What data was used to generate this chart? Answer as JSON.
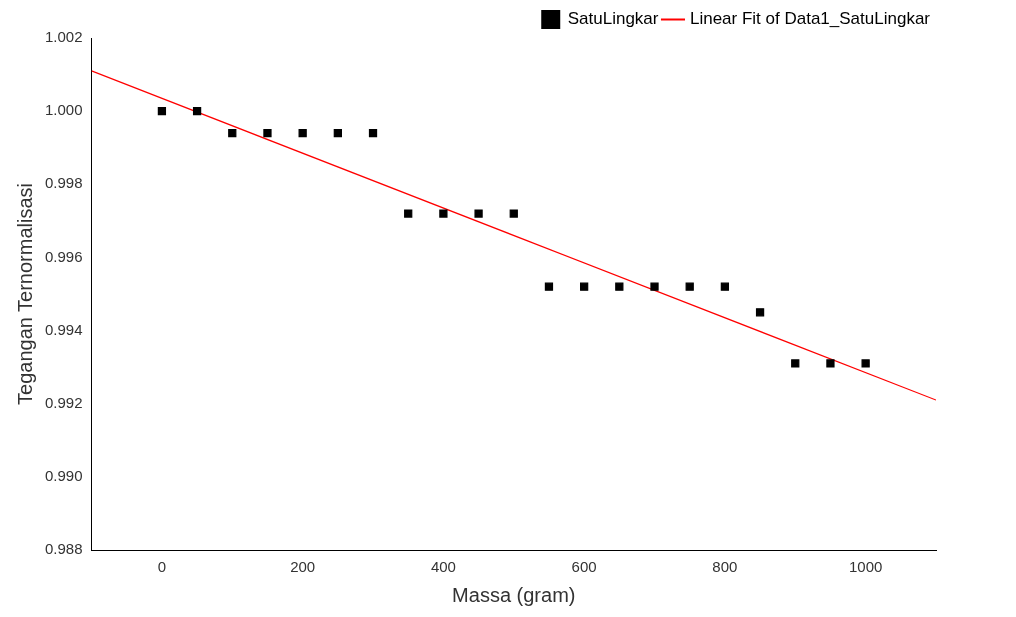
{
  "chart_data": {
    "type": "scatter",
    "xlabel": "Massa (gram)",
    "ylabel": "Tegangan Ternormalisasi",
    "x": [
      0,
      50,
      100,
      150,
      200,
      250,
      300,
      350,
      400,
      450,
      500,
      550,
      600,
      650,
      700,
      750,
      800,
      850,
      900,
      950,
      1000
    ],
    "series": [
      {
        "name": "SatuLingkar",
        "type": "scatter",
        "color": "#000000",
        "marker": "square",
        "values": [
          1.0,
          1.0,
          0.9994,
          0.9994,
          0.9994,
          0.9994,
          0.9994,
          0.9972,
          0.9972,
          0.9972,
          0.9972,
          0.9952,
          0.9952,
          0.9952,
          0.9952,
          0.9952,
          0.9952,
          0.9945,
          0.9931,
          0.9931,
          0.9931
        ]
      },
      {
        "name": "Linear Fit of Data1_SatuLingkar",
        "type": "line",
        "color": "#ff0000",
        "marker": "none",
        "line_style": "solid",
        "x": [
          -100,
          1100
        ],
        "values": [
          1.0011,
          0.9921
        ]
      }
    ],
    "xlim": [
      -100,
      1100
    ],
    "xticks": [
      0,
      200,
      400,
      600,
      800,
      1000
    ],
    "ylim": [
      0.988,
      1.002
    ],
    "yticks": [
      {
        "value": 0.988,
        "label": "0.988"
      },
      {
        "value": 0.99,
        "label": "0.990"
      },
      {
        "value": 0.992,
        "label": "0.992"
      },
      {
        "value": 0.994,
        "label": "0.994"
      },
      {
        "value": 0.996,
        "label": "0.996"
      },
      {
        "value": 0.998,
        "label": "0.998"
      },
      {
        "value": 1.0,
        "label": "1.000"
      },
      {
        "value": 1.002,
        "label": "1.002"
      }
    ],
    "grid": false,
    "legend": "top right"
  }
}
